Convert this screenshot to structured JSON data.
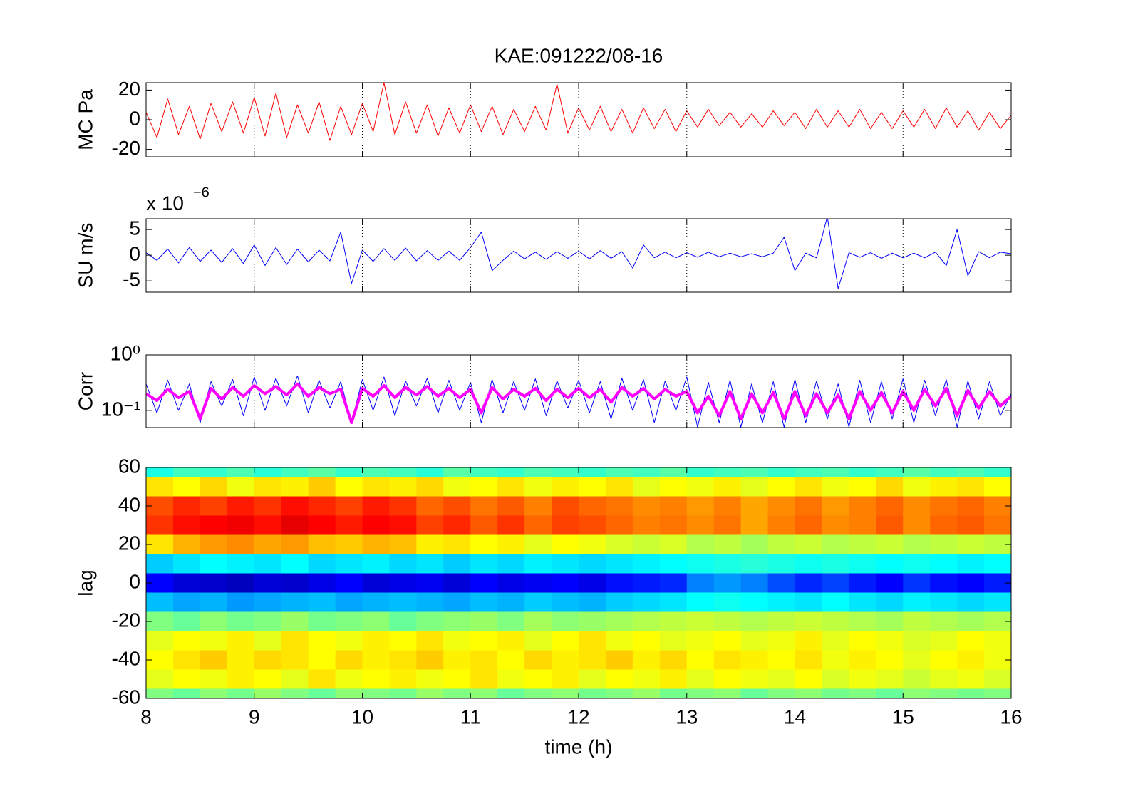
{
  "chart_data": [
    {
      "type": "line",
      "title": "KAE:091222/08-16",
      "ylabel": "MC Pa",
      "xlim": [
        8,
        16
      ],
      "ylim": [
        -25,
        25
      ],
      "xticks": [
        8,
        9,
        10,
        11,
        12,
        13,
        14,
        15,
        16
      ],
      "yticks": [
        -20,
        0,
        20
      ],
      "grid": "x",
      "x": [
        8,
        8.1,
        8.2,
        8.3,
        8.4,
        8.5,
        8.6,
        8.7,
        8.8,
        8.9,
        9,
        9.1,
        9.2,
        9.3,
        9.4,
        9.5,
        9.6,
        9.7,
        9.8,
        9.9,
        10,
        10.1,
        10.2,
        10.3,
        10.4,
        10.5,
        10.6,
        10.7,
        10.8,
        10.9,
        11,
        11.1,
        11.2,
        11.3,
        11.4,
        11.5,
        11.6,
        11.7,
        11.8,
        11.9,
        12,
        12.1,
        12.2,
        12.3,
        12.4,
        12.5,
        12.6,
        12.7,
        12.8,
        12.9,
        13,
        13.1,
        13.2,
        13.3,
        13.4,
        13.5,
        13.6,
        13.7,
        13.8,
        13.9,
        14,
        14.1,
        14.2,
        14.3,
        14.4,
        14.5,
        14.6,
        14.7,
        14.8,
        14.9,
        15,
        15.1,
        15.2,
        15.3,
        15.4,
        15.5,
        15.6,
        15.7,
        15.8,
        15.9,
        16
      ],
      "series": [
        {
          "color": "#ff0000",
          "width": 1,
          "values": [
            5,
            -12,
            14,
            -10,
            9,
            -13,
            11,
            -8,
            12,
            -9,
            15,
            -11,
            18,
            -12,
            10,
            -9,
            12,
            -14,
            9,
            -10,
            11,
            -8,
            25,
            -10,
            12,
            -9,
            10,
            -11,
            8,
            -9,
            10,
            -8,
            9,
            -10,
            7,
            -8,
            9,
            -7,
            24,
            -9,
            8,
            -7,
            9,
            -8,
            7,
            -9,
            8,
            -6,
            7,
            -8,
            6,
            -5,
            7,
            -4,
            5,
            -5,
            4,
            -5,
            6,
            -4,
            5,
            -6,
            7,
            -5,
            6,
            -5,
            7,
            -6,
            5,
            -6,
            6,
            -5,
            7,
            -6,
            8,
            -5,
            6,
            -7,
            5,
            -6,
            3
          ]
        }
      ]
    },
    {
      "type": "line",
      "ylabel": "SU m/s",
      "y_multiplier": {
        "base": "x 10",
        "power": "−6"
      },
      "xlim": [
        8,
        16
      ],
      "ylim": [
        -7.2,
        7.1
      ],
      "xticks": [
        8,
        9,
        10,
        11,
        12,
        13,
        14,
        15,
        16
      ],
      "yticks": [
        -5,
        0,
        5
      ],
      "grid": "x",
      "x": [
        8,
        8.1,
        8.2,
        8.3,
        8.4,
        8.5,
        8.6,
        8.7,
        8.8,
        8.9,
        9,
        9.1,
        9.2,
        9.3,
        9.4,
        9.5,
        9.6,
        9.7,
        9.8,
        9.9,
        10,
        10.1,
        10.2,
        10.3,
        10.4,
        10.5,
        10.6,
        10.7,
        10.8,
        10.9,
        11,
        11.1,
        11.2,
        11.3,
        11.4,
        11.5,
        11.6,
        11.7,
        11.8,
        11.9,
        12,
        12.1,
        12.2,
        12.3,
        12.4,
        12.5,
        12.6,
        12.7,
        12.8,
        12.9,
        13,
        13.1,
        13.2,
        13.3,
        13.4,
        13.5,
        13.6,
        13.7,
        13.8,
        13.9,
        14,
        14.1,
        14.2,
        14.3,
        14.4,
        14.5,
        14.6,
        14.7,
        14.8,
        14.9,
        15,
        15.1,
        15.2,
        15.3,
        15.4,
        15.5,
        15.6,
        15.7,
        15.8,
        15.9,
        16
      ],
      "series": [
        {
          "color": "#0000ff",
          "width": 1,
          "values": [
            0.5,
            -1,
            1.2,
            -1.5,
            1.5,
            -1.2,
            1,
            -1.4,
            1.3,
            -1.6,
            2,
            -2,
            1.5,
            -1.8,
            1.2,
            -1.3,
            1,
            -1.1,
            4.5,
            -5.5,
            1,
            -1.2,
            1.3,
            -1,
            1.4,
            -1.1,
            0.9,
            -1,
            0.8,
            -1,
            1.5,
            4.5,
            -3,
            -1,
            0.8,
            -0.7,
            0.6,
            -0.8,
            0.7,
            -0.6,
            0.8,
            -0.7,
            0.9,
            -0.6,
            0.7,
            -2.5,
            2,
            -0.5,
            0.6,
            -0.5,
            0.5,
            -0.4,
            0.6,
            -0.3,
            0.4,
            -0.3,
            0.3,
            -0.3,
            0.4,
            3.5,
            -3,
            0.4,
            -0.5,
            7.5,
            -6.5,
            0.5,
            -0.4,
            0.5,
            -0.6,
            0.4,
            -0.5,
            0.4,
            -0.5,
            0.6,
            -2,
            5,
            -4,
            0.7,
            -0.5,
            0.6,
            0.3
          ]
        }
      ]
    },
    {
      "type": "line",
      "ylabel": "Corr",
      "yscale": "log",
      "xlim": [
        8,
        16
      ],
      "ylim": [
        0.049,
        1
      ],
      "xticks": [
        8,
        9,
        10,
        11,
        12,
        13,
        14,
        15,
        16
      ],
      "yticks": [
        {
          "value": 0.1,
          "label": "10⁻¹"
        },
        {
          "value": 1,
          "label": "10⁰"
        }
      ],
      "grid": "x",
      "x": [
        8,
        8.1,
        8.2,
        8.3,
        8.4,
        8.5,
        8.6,
        8.7,
        8.8,
        8.9,
        9,
        9.1,
        9.2,
        9.3,
        9.4,
        9.5,
        9.6,
        9.7,
        9.8,
        9.9,
        10,
        10.1,
        10.2,
        10.3,
        10.4,
        10.5,
        10.6,
        10.7,
        10.8,
        10.9,
        11,
        11.1,
        11.2,
        11.3,
        11.4,
        11.5,
        11.6,
        11.7,
        11.8,
        11.9,
        12,
        12.1,
        12.2,
        12.3,
        12.4,
        12.5,
        12.6,
        12.7,
        12.8,
        12.9,
        13,
        13.1,
        13.2,
        13.3,
        13.4,
        13.5,
        13.6,
        13.7,
        13.8,
        13.9,
        14,
        14.1,
        14.2,
        14.3,
        14.4,
        14.5,
        14.6,
        14.7,
        14.8,
        14.9,
        15,
        15.1,
        15.2,
        15.3,
        15.4,
        15.5,
        15.6,
        15.7,
        15.8,
        15.9,
        16
      ],
      "series": [
        {
          "color": "#0000ff",
          "width": 1,
          "values": [
            0.3,
            0.09,
            0.35,
            0.1,
            0.3,
            0.06,
            0.33,
            0.12,
            0.36,
            0.08,
            0.4,
            0.1,
            0.38,
            0.12,
            0.42,
            0.09,
            0.35,
            0.11,
            0.33,
            0.06,
            0.36,
            0.1,
            0.4,
            0.08,
            0.34,
            0.12,
            0.38,
            0.09,
            0.35,
            0.1,
            0.32,
            0.06,
            0.36,
            0.09,
            0.33,
            0.1,
            0.37,
            0.08,
            0.34,
            0.11,
            0.35,
            0.09,
            0.33,
            0.07,
            0.38,
            0.1,
            0.36,
            0.06,
            0.34,
            0.1,
            0.4,
            0.05,
            0.32,
            0.06,
            0.35,
            0.05,
            0.3,
            0.06,
            0.33,
            0.05,
            0.36,
            0.06,
            0.34,
            0.07,
            0.3,
            0.05,
            0.35,
            0.06,
            0.33,
            0.07,
            0.37,
            0.06,
            0.35,
            0.08,
            0.36,
            0.05,
            0.34,
            0.07,
            0.33,
            0.08,
            0.2
          ]
        },
        {
          "color": "#ff00ff",
          "width": 4,
          "values": [
            0.2,
            0.15,
            0.24,
            0.17,
            0.22,
            0.07,
            0.25,
            0.16,
            0.26,
            0.18,
            0.28,
            0.2,
            0.27,
            0.19,
            0.3,
            0.18,
            0.26,
            0.2,
            0.24,
            0.06,
            0.25,
            0.18,
            0.28,
            0.17,
            0.26,
            0.19,
            0.27,
            0.18,
            0.25,
            0.17,
            0.24,
            0.09,
            0.26,
            0.16,
            0.24,
            0.18,
            0.25,
            0.15,
            0.24,
            0.17,
            0.25,
            0.17,
            0.24,
            0.14,
            0.26,
            0.18,
            0.25,
            0.16,
            0.24,
            0.18,
            0.22,
            0.09,
            0.18,
            0.08,
            0.22,
            0.07,
            0.2,
            0.09,
            0.21,
            0.07,
            0.22,
            0.08,
            0.2,
            0.09,
            0.19,
            0.07,
            0.22,
            0.1,
            0.21,
            0.09,
            0.22,
            0.1,
            0.24,
            0.12,
            0.25,
            0.08,
            0.23,
            0.11,
            0.22,
            0.12,
            0.18
          ]
        }
      ]
    },
    {
      "type": "heatmap",
      "ylabel": "lag",
      "xlabel": "time (h)",
      "colormap": "jet",
      "zlim": [
        -0.4,
        0.4
      ],
      "xticklabels": true,
      "xlim": [
        8,
        16
      ],
      "ylim": [
        -60,
        60
      ],
      "xticks": [
        8,
        9,
        10,
        11,
        12,
        13,
        14,
        15,
        16
      ],
      "yticks": [
        -60,
        -40,
        -20,
        0,
        20,
        40,
        60
      ],
      "x": [
        8.125,
        8.375,
        8.625,
        8.875,
        9.125,
        9.375,
        9.625,
        9.875,
        10.125,
        10.375,
        10.625,
        10.875,
        11.125,
        11.375,
        11.625,
        11.875,
        12.125,
        12.375,
        12.625,
        12.875,
        13.125,
        13.375,
        13.625,
        13.875,
        14.125,
        14.375,
        14.625,
        14.875,
        15.125,
        15.375,
        15.625,
        15.875
      ],
      "y": [
        60,
        50,
        40,
        30,
        20,
        10,
        0,
        -10,
        -20,
        -30,
        -40,
        -50,
        -60
      ],
      "z": [
        [
          -0.08,
          -0.05,
          -0.06,
          -0.04,
          -0.07,
          -0.05,
          -0.03,
          -0.06,
          -0.04,
          -0.05,
          -0.07,
          -0.03,
          -0.05,
          -0.06,
          -0.04,
          -0.05,
          -0.06,
          -0.04,
          -0.05,
          -0.03,
          -0.06,
          -0.05,
          -0.04,
          -0.06,
          -0.05,
          -0.04,
          -0.06,
          -0.05,
          -0.03,
          -0.05,
          -0.04,
          -0.06
        ],
        [
          0.12,
          0.1,
          0.13,
          0.09,
          0.12,
          0.11,
          0.14,
          0.1,
          0.12,
          0.11,
          0.13,
          0.09,
          0.1,
          0.12,
          0.09,
          0.11,
          0.1,
          0.12,
          0.08,
          0.1,
          0.09,
          0.11,
          0.08,
          0.1,
          0.12,
          0.09,
          0.1,
          0.13,
          0.09,
          0.11,
          0.12,
          0.1
        ],
        [
          0.24,
          0.27,
          0.25,
          0.28,
          0.26,
          0.29,
          0.27,
          0.25,
          0.28,
          0.26,
          0.22,
          0.24,
          0.21,
          0.23,
          0.2,
          0.24,
          0.22,
          0.21,
          0.19,
          0.2,
          0.18,
          0.2,
          0.17,
          0.19,
          0.21,
          0.18,
          0.2,
          0.22,
          0.19,
          0.21,
          0.22,
          0.2
        ],
        [
          0.26,
          0.29,
          0.3,
          0.31,
          0.29,
          0.32,
          0.3,
          0.28,
          0.3,
          0.29,
          0.25,
          0.27,
          0.23,
          0.26,
          0.22,
          0.25,
          0.24,
          0.22,
          0.2,
          0.21,
          0.19,
          0.21,
          0.17,
          0.2,
          0.22,
          0.19,
          0.2,
          0.23,
          0.19,
          0.22,
          0.23,
          0.21
        ],
        [
          0.12,
          0.16,
          0.18,
          0.19,
          0.17,
          0.18,
          0.15,
          0.14,
          0.16,
          0.15,
          0.11,
          0.12,
          0.1,
          0.11,
          0.08,
          0.1,
          0.09,
          0.07,
          0.06,
          0.07,
          0.04,
          0.05,
          0.03,
          0.05,
          0.06,
          0.04,
          0.05,
          0.06,
          0.04,
          0.05,
          0.06,
          0.05
        ],
        [
          -0.14,
          -0.12,
          -0.1,
          -0.11,
          -0.12,
          -0.1,
          -0.13,
          -0.12,
          -0.11,
          -0.13,
          -0.12,
          -0.14,
          -0.12,
          -0.13,
          -0.11,
          -0.12,
          -0.13,
          -0.12,
          -0.11,
          -0.1,
          -0.09,
          -0.08,
          -0.07,
          -0.08,
          -0.09,
          -0.08,
          -0.09,
          -0.1,
          -0.09,
          -0.1,
          -0.11,
          -0.1
        ],
        [
          -0.3,
          -0.33,
          -0.34,
          -0.35,
          -0.33,
          -0.34,
          -0.32,
          -0.3,
          -0.33,
          -0.32,
          -0.31,
          -0.33,
          -0.3,
          -0.32,
          -0.31,
          -0.3,
          -0.32,
          -0.29,
          -0.28,
          -0.27,
          -0.2,
          -0.18,
          -0.2,
          -0.24,
          -0.27,
          -0.25,
          -0.28,
          -0.3,
          -0.26,
          -0.29,
          -0.3,
          -0.28
        ],
        [
          -0.15,
          -0.17,
          -0.16,
          -0.18,
          -0.17,
          -0.16,
          -0.15,
          -0.17,
          -0.16,
          -0.15,
          -0.16,
          -0.17,
          -0.15,
          -0.16,
          -0.14,
          -0.15,
          -0.16,
          -0.14,
          -0.13,
          -0.12,
          -0.1,
          -0.09,
          -0.1,
          -0.11,
          -0.12,
          -0.1,
          -0.12,
          -0.13,
          -0.11,
          -0.12,
          -0.13,
          -0.12
        ],
        [
          0,
          -0.02,
          0.01,
          -0.01,
          0,
          0.02,
          -0.01,
          0,
          0.01,
          -0.02,
          0,
          0.01,
          0.02,
          0,
          0.03,
          0.01,
          0.02,
          0.03,
          0.04,
          0.05,
          0.06,
          0.05,
          0.04,
          0.05,
          0.06,
          0.05,
          0.04,
          0.03,
          0.05,
          0.04,
          0.03,
          0.04
        ],
        [
          0.08,
          0.1,
          0.09,
          0.11,
          0.08,
          0.12,
          0.1,
          0.09,
          0.11,
          0.1,
          0.12,
          0.09,
          0.1,
          0.11,
          0.08,
          0.1,
          0.12,
          0.09,
          0.1,
          0.08,
          0.09,
          0.1,
          0.08,
          0.09,
          0.11,
          0.08,
          0.1,
          0.09,
          0.07,
          0.08,
          0.1,
          0.09
        ],
        [
          0.1,
          0.12,
          0.14,
          0.11,
          0.13,
          0.12,
          0.1,
          0.13,
          0.11,
          0.12,
          0.14,
          0.11,
          0.12,
          0.1,
          0.13,
          0.11,
          0.12,
          0.14,
          0.11,
          0.13,
          0.1,
          0.12,
          0.11,
          0.1,
          0.12,
          0.09,
          0.11,
          0.1,
          0.08,
          0.1,
          0.11,
          0.09
        ],
        [
          0.08,
          0.1,
          0.09,
          0.11,
          0.1,
          0.08,
          0.12,
          0.09,
          0.1,
          0.11,
          0.09,
          0.1,
          0.12,
          0.09,
          0.1,
          0.11,
          0.08,
          0.1,
          0.09,
          0.11,
          0.08,
          0.1,
          0.09,
          0.08,
          0.1,
          0.07,
          0.09,
          0.08,
          0.06,
          0.08,
          0.09,
          0.07
        ],
        [
          0,
          -0.02,
          0.01,
          -0.01,
          0.02,
          0,
          -0.02,
          0.01,
          0,
          -0.01,
          0.02,
          0,
          0.01,
          -0.02,
          0,
          0.01,
          -0.01,
          0,
          0.02,
          -0.01,
          0,
          0.01,
          -0.02,
          0,
          0.01,
          -0.01,
          0,
          -0.02,
          0.01,
          0,
          -0.01,
          0
        ]
      ]
    }
  ]
}
